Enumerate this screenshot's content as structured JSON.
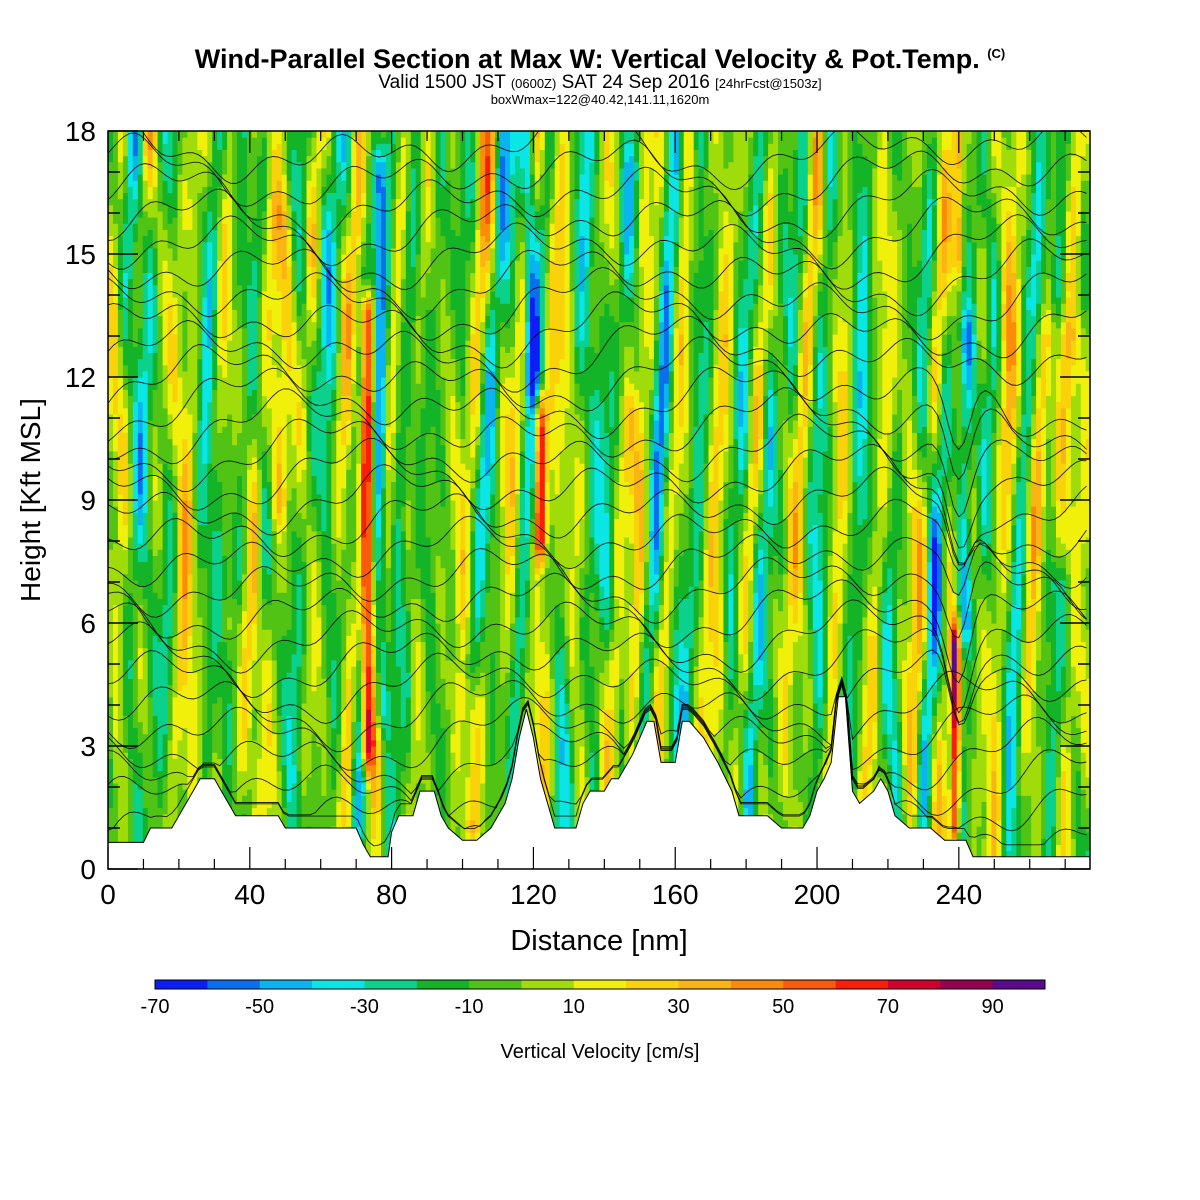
{
  "title": {
    "main": "Wind-Parallel Section at Max W: Vertical Velocity & Pot.Temp.",
    "copyright": "(C)",
    "valid_prefix": "Valid 1500 JST",
    "valid_utc": "(0600Z)",
    "valid_date": "SAT 24 Sep 2016",
    "forecast": "[24hrFcst@1503z]",
    "box_info": "boxWmax=122@40.42,141.11,1620m"
  },
  "chart_data": {
    "type": "heatmap",
    "xlabel": "Distance [nm]",
    "ylabel": "Height [Kft MSL]",
    "xlim": [
      0,
      277
    ],
    "ylim": [
      0,
      18
    ],
    "x_ticks": [
      "0",
      "40",
      "80",
      "120",
      "160",
      "200",
      "240"
    ],
    "y_ticks": [
      "0",
      "3",
      "6",
      "9",
      "12",
      "15",
      "18"
    ],
    "colorbar": {
      "label": "Vertical Velocity [cm/s]",
      "bounds": [
        -70,
        -60,
        -50,
        -40,
        -30,
        -20,
        -10,
        0,
        10,
        20,
        30,
        40,
        50,
        60,
        70,
        80,
        90,
        100
      ],
      "tick_labels": [
        "-70",
        "-50",
        "-30",
        "-10",
        "10",
        "30",
        "50",
        "70",
        "90"
      ],
      "colors": [
        "#0a1ef5",
        "#0a6ef0",
        "#0ab4f0",
        "#0ae6e6",
        "#0ad28c",
        "#14b428",
        "#50c314",
        "#a0dc0a",
        "#f0f00a",
        "#fad20a",
        "#fab414",
        "#fa8c0a",
        "#fa5a0a",
        "#fa1e0a",
        "#d2002d",
        "#960050",
        "#5a0a8c"
      ]
    },
    "notable_features": {
      "strong_updrafts_x_nm": [
        73,
        122,
        239
      ],
      "strong_downdrafts_x_nm": [
        75,
        120,
        240
      ]
    },
    "terrain_profile_kft": [
      [
        0,
        0.65
      ],
      [
        10,
        0.65
      ],
      [
        12,
        1.0
      ],
      [
        18,
        1.0
      ],
      [
        20,
        1.3
      ],
      [
        22,
        1.6
      ],
      [
        24,
        1.9
      ],
      [
        26,
        2.2
      ],
      [
        30,
        2.2
      ],
      [
        32,
        1.9
      ],
      [
        34,
        1.6
      ],
      [
        36,
        1.3
      ],
      [
        48,
        1.3
      ],
      [
        50,
        1.0
      ],
      [
        70,
        1.0
      ],
      [
        72,
        0.6
      ],
      [
        74,
        0.3
      ],
      [
        79,
        0.3
      ],
      [
        80,
        0.9
      ],
      [
        82,
        1.3
      ],
      [
        86,
        1.3
      ],
      [
        88,
        1.9
      ],
      [
        92,
        1.9
      ],
      [
        94,
        1.3
      ],
      [
        96,
        1.0
      ],
      [
        100,
        0.7
      ],
      [
        104,
        0.7
      ],
      [
        108,
        1.0
      ],
      [
        112,
        1.6
      ],
      [
        114,
        2.2
      ],
      [
        116,
        3.2
      ],
      [
        118,
        3.9
      ],
      [
        120,
        3.2
      ],
      [
        122,
        2.2
      ],
      [
        124,
        1.6
      ],
      [
        126,
        1.0
      ],
      [
        132,
        1.0
      ],
      [
        134,
        1.6
      ],
      [
        136,
        1.9
      ],
      [
        140,
        1.9
      ],
      [
        142,
        2.2
      ],
      [
        144,
        2.2
      ],
      [
        148,
        2.8
      ],
      [
        150,
        3.2
      ],
      [
        152,
        3.6
      ],
      [
        154,
        3.6
      ],
      [
        156,
        2.6
      ],
      [
        160,
        2.6
      ],
      [
        162,
        3.6
      ],
      [
        164,
        3.6
      ],
      [
        168,
        3.2
      ],
      [
        170,
        2.9
      ],
      [
        172,
        2.6
      ],
      [
        176,
        1.9
      ],
      [
        178,
        1.3
      ],
      [
        186,
        1.3
      ],
      [
        190,
        1.0
      ],
      [
        196,
        1.0
      ],
      [
        198,
        1.3
      ],
      [
        200,
        1.9
      ],
      [
        202,
        2.2
      ],
      [
        204,
        2.6
      ],
      [
        206,
        4.2
      ],
      [
        208,
        4.2
      ],
      [
        210,
        1.9
      ],
      [
        212,
        1.6
      ],
      [
        216,
        1.9
      ],
      [
        218,
        2.2
      ],
      [
        220,
        1.9
      ],
      [
        222,
        1.3
      ],
      [
        226,
        1.0
      ],
      [
        232,
        1.0
      ],
      [
        236,
        0.7
      ],
      [
        242,
        0.7
      ],
      [
        244,
        0.3
      ],
      [
        250,
        0.3
      ],
      [
        277,
        0.3
      ]
    ]
  }
}
